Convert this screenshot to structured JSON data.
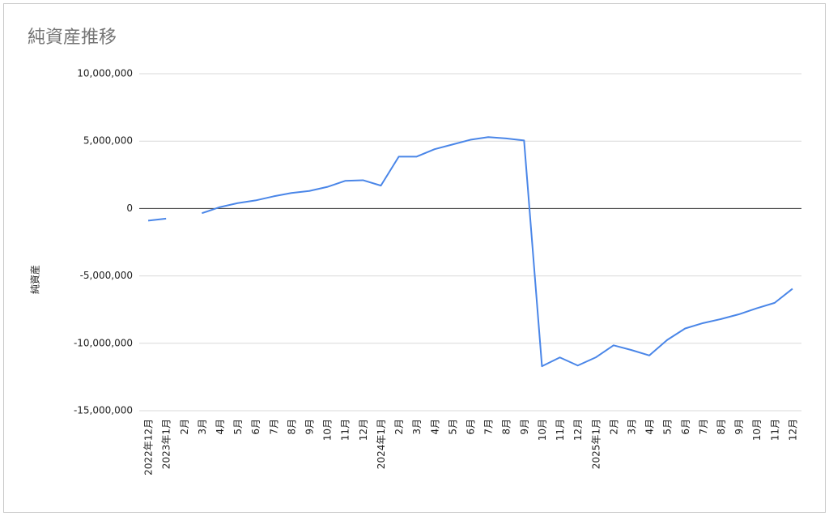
{
  "chart_data": {
    "type": "line",
    "title": "純資産推移",
    "y_label": "純資産",
    "categories": [
      "2022年12月",
      "2023年1月",
      "2月",
      "3月",
      "4月",
      "5月",
      "6月",
      "7月",
      "8月",
      "9月",
      "10月",
      "11月",
      "12月",
      "2024年1月",
      "2月",
      "3月",
      "4月",
      "5月",
      "6月",
      "7月",
      "8月",
      "9月",
      "10月",
      "11月",
      "12月",
      "2025年1月",
      "2月",
      "3月",
      "4月",
      "5月",
      "6月",
      "7月",
      "8月",
      "9月",
      "10月",
      "11月",
      "12月"
    ],
    "values": [
      -900000,
      -750000,
      null,
      -350000,
      100000,
      400000,
      600000,
      900000,
      1150000,
      1300000,
      1600000,
      2050000,
      2100000,
      1700000,
      3850000,
      3850000,
      4400000,
      4750000,
      5100000,
      5300000,
      5200000,
      5050000,
      -11700000,
      -11050000,
      -11650000,
      -11050000,
      -10150000,
      -10500000,
      -10900000,
      -9750000,
      -8900000,
      -8500000,
      -8200000,
      -7850000,
      -7400000,
      -7000000,
      -5950000
    ],
    "color": "#4a86e8",
    "ylim": [
      -15000000,
      10000000
    ],
    "yticks": [
      {
        "value": -15000000,
        "label": "-15,000,000"
      },
      {
        "value": -10000000,
        "label": "-10,000,000"
      },
      {
        "value": -5000000,
        "label": "-5,000,000"
      },
      0,
      {
        "value": 5000000,
        "label": "5,000,000"
      },
      {
        "value": 10000000,
        "label": "10,000,000"
      }
    ],
    "grid": true
  }
}
